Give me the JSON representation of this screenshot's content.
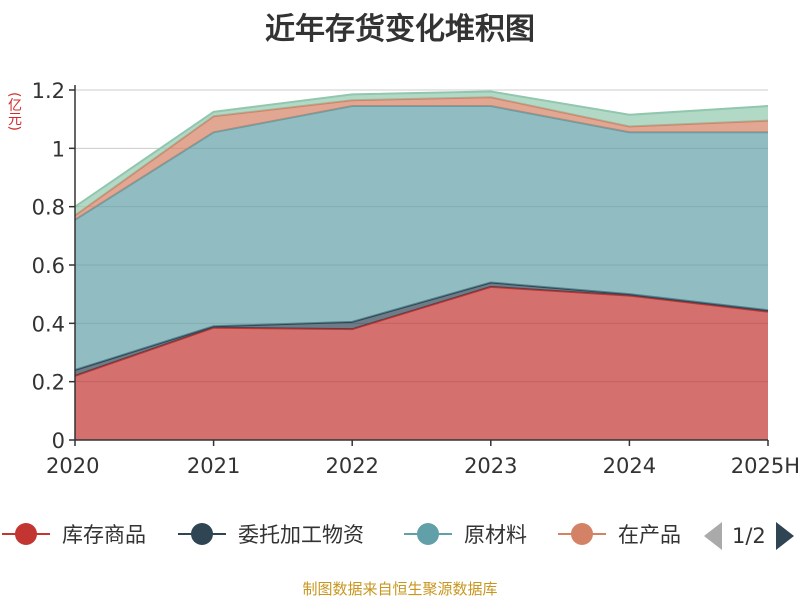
{
  "page": {
    "title": "近年存货变化堆积图",
    "source": "制图数据来自恒生聚源数据库"
  },
  "chart_data": {
    "type": "area",
    "stacked": true,
    "title": "近年存货变化堆积图",
    "ylabel": "(亿元)",
    "xlabel": "",
    "ylim": [
      0,
      1.2
    ],
    "yticks": [
      "0",
      "0.2",
      "0.4",
      "0.6",
      "0.8",
      "1",
      "1.2"
    ],
    "ytick_values": [
      0,
      0.2,
      0.4,
      0.6,
      0.8,
      1.0,
      1.2
    ],
    "categories": [
      "2020",
      "2021",
      "2022",
      "2023",
      "2024",
      "2025H"
    ],
    "grid": true,
    "legend_position": "bottom",
    "series": [
      {
        "name": "库存商品",
        "color": "#c23531",
        "values": [
          0.22,
          0.385,
          0.38,
          0.525,
          0.495,
          0.44
        ]
      },
      {
        "name": "委托加工物资",
        "color": "#2f4554",
        "values": [
          0.02,
          0.005,
          0.025,
          0.015,
          0.005,
          0.005
        ]
      },
      {
        "name": "原材料",
        "color": "#61a0a8",
        "values": [
          0.515,
          0.665,
          0.74,
          0.605,
          0.555,
          0.61
        ]
      },
      {
        "name": "在产品",
        "color": "#d48265",
        "values": [
          0.015,
          0.055,
          0.02,
          0.03,
          0.02,
          0.04
        ]
      },
      {
        "name": "",
        "color": "#91c7ae",
        "values": [
          0.03,
          0.015,
          0.02,
          0.02,
          0.04,
          0.05
        ]
      }
    ]
  },
  "legend": {
    "items": [
      {
        "label": "库存商品",
        "color": "#c23531"
      },
      {
        "label": "委托加工物资",
        "color": "#2f4554"
      },
      {
        "label": "原材料",
        "color": "#61a0a8"
      },
      {
        "label": "在产品",
        "color": "#d48265"
      }
    ],
    "page_indicator": "1/2"
  }
}
